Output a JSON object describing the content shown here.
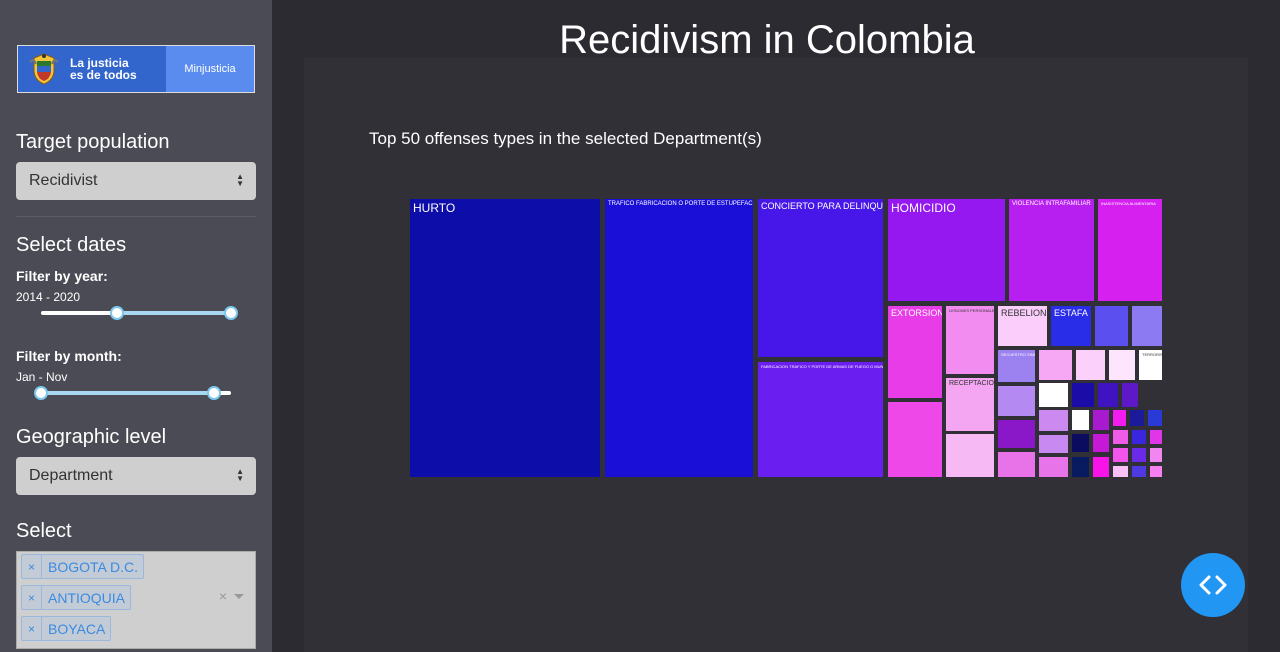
{
  "logo": {
    "line1": "La justicia",
    "line2": "es de todos",
    "ministry": "Minjusticia",
    "seal_icon": "colombia-coat-of-arms-icon"
  },
  "sidebar": {
    "target_population": {
      "heading": "Target population",
      "value": "Recidivist"
    },
    "dates": {
      "heading": "Select dates",
      "year_label": "Filter by year:",
      "year_value": "2014 - 2020",
      "year_range_fraction": [
        0.4,
        1.0
      ],
      "month_label": "Filter by month:",
      "month_value": "Jan - Nov",
      "month_range_fraction": [
        0.0,
        0.91
      ]
    },
    "geo": {
      "heading": "Geographic level",
      "value": "Department"
    },
    "select": {
      "heading": "Select",
      "tags": [
        "BOGOTA D.C.",
        "ANTIOQUIA",
        "BOYACA"
      ],
      "remove_symbol": "×",
      "clear_symbol": "×"
    }
  },
  "main": {
    "title": "Recidivism in Colombia",
    "subtitle": "Top 50 offenses types in the selected Department(s)"
  },
  "colors": {
    "accent_blue": "#2196f3",
    "sidebar_bg": "#4b4b55",
    "main_bg": "#2b2b31"
  },
  "chart_data": {
    "type": "treemap",
    "items": [
      {
        "label": "HURTO",
        "color": "#0d0daa"
      },
      {
        "label": "TRAFICO FABRICACION O PORTE DE ESTUPEFACIENTES",
        "color": "#1a0fd6"
      },
      {
        "label": "CONCIERTO PARA DELINQUIR",
        "color": "#4617e8"
      },
      {
        "label": "FABRICACION TRAFICO Y PORTE DE ARMAS DE FUEGO O MUNICIONES",
        "color": "#6a1ef0"
      },
      {
        "label": "HOMICIDIO",
        "color": "#9518f0"
      },
      {
        "label": "VIOLENCIA INTRAFAMILIAR",
        "color": "#b71ef0"
      },
      {
        "label": "INASISTENCIA ALIMENTARIA",
        "color": "#d520f0"
      },
      {
        "label": "EXTORSION",
        "color": "#e83ce8"
      },
      {
        "label": "",
        "color": "#ee48e8"
      },
      {
        "label": "LESIONES PERSONALES",
        "color": "#f28cf0"
      },
      {
        "label": "RECEPTACION",
        "color": "#f4a6f2"
      },
      {
        "label": "",
        "color": "#f7b9f4"
      },
      {
        "label": "REBELION",
        "color": "#fbcdfb"
      },
      {
        "label": "ESTAFA",
        "color": "#2a2de8"
      },
      {
        "label": "",
        "color": "#5c4ff0"
      },
      {
        "label": "",
        "color": "#8c7af2"
      },
      {
        "label": "SECUESTRO SIMPLE",
        "color": "#9b82f0"
      },
      {
        "label": "",
        "color": "#f7a8f5"
      },
      {
        "label": "",
        "color": "#fbd0fb"
      },
      {
        "label": "",
        "color": "#fde6fd"
      },
      {
        "label": "TERRORISMO",
        "color": "#ffffff"
      },
      {
        "label": "",
        "color": "#b48af2"
      },
      {
        "label": "",
        "color": "#ffffff"
      },
      {
        "label": "",
        "color": "#1b0ca8"
      },
      {
        "label": "",
        "color": "#3f14c0"
      },
      {
        "label": "",
        "color": "#5e18c8"
      },
      {
        "label": "",
        "color": "#8a18c8"
      },
      {
        "label": "",
        "color": "#cc8af0"
      },
      {
        "label": "",
        "color": "#ffffff"
      },
      {
        "label": "",
        "color": "#a81ad0"
      },
      {
        "label": "",
        "color": "#f21cf0"
      },
      {
        "label": "",
        "color": "#e873e8"
      },
      {
        "label": "",
        "color": "#1a1a9a"
      },
      {
        "label": "",
        "color": "#2a3ad8"
      },
      {
        "label": "",
        "color": "#c88af0"
      },
      {
        "label": "",
        "color": "#0b0b60"
      },
      {
        "label": "",
        "color": "#c41ad8"
      },
      {
        "label": "",
        "color": "#f05ce8"
      },
      {
        "label": "",
        "color": "#3b26e0"
      },
      {
        "label": "",
        "color": "#e036e8"
      },
      {
        "label": "",
        "color": "#e874ea"
      },
      {
        "label": "",
        "color": "#081a60"
      },
      {
        "label": "",
        "color": "#f814e8"
      },
      {
        "label": "",
        "color": "#f254ec"
      },
      {
        "label": "",
        "color": "#6a2ae8"
      },
      {
        "label": "",
        "color": "#f286f0"
      },
      {
        "label": "",
        "color": "#fbc0f8"
      },
      {
        "label": "",
        "color": "#4e3ae0"
      },
      {
        "label": "",
        "color": "#f680f0"
      },
      {
        "label": "",
        "color": "#f8a0f4"
      }
    ]
  }
}
